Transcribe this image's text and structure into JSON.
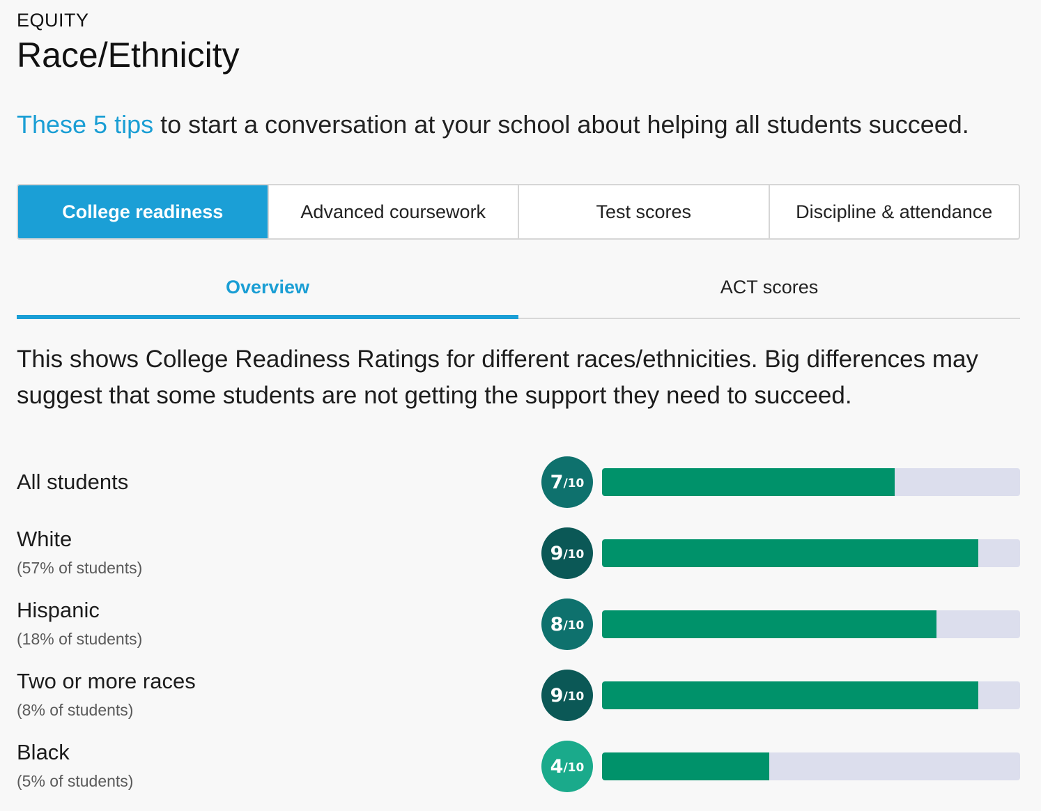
{
  "header": {
    "eyebrow": "EQUITY",
    "title": "Race/Ethnicity"
  },
  "tips": {
    "link_text": "These 5 tips",
    "rest_text": " to start a conversation at your school about helping all students succeed."
  },
  "tabs": [
    {
      "label": "College readiness",
      "active": true
    },
    {
      "label": "Advanced coursework",
      "active": false
    },
    {
      "label": "Test scores",
      "active": false
    },
    {
      "label": "Discipline & attendance",
      "active": false
    }
  ],
  "subtabs": [
    {
      "label": "Overview",
      "active": true
    },
    {
      "label": "ACT scores",
      "active": false
    }
  ],
  "description": "This shows College Readiness Ratings for different races/ethnicities. Big differences may suggest that some students are not getting the support they need to succeed.",
  "colors": {
    "accent": "#1b9fd6",
    "bar_fill": "#00926a",
    "bar_track": "#dcdeed",
    "badge_high": "#0b5856",
    "badge_mid": "#0e716d",
    "badge_low": "#1aaa8b"
  },
  "ratings": [
    {
      "group": "All students",
      "share": "",
      "score": "7",
      "denom": "/10",
      "value": 7
    },
    {
      "group": "White",
      "share": "(57% of students)",
      "score": "9",
      "denom": "/10",
      "value": 9
    },
    {
      "group": "Hispanic",
      "share": "(18% of students)",
      "score": "8",
      "denom": "/10",
      "value": 8
    },
    {
      "group": "Two or more races",
      "share": "(8% of students)",
      "score": "9",
      "denom": "/10",
      "value": 9
    },
    {
      "group": "Black",
      "share": "(5% of students)",
      "score": "4",
      "denom": "/10",
      "value": 4
    }
  ]
}
